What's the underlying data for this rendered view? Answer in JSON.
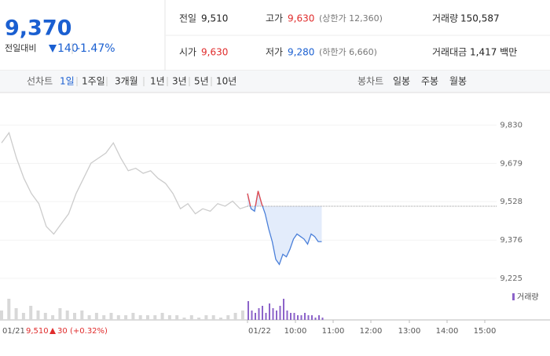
{
  "quote": {
    "price": "9,370",
    "change_label": "전일대비",
    "change": "140",
    "change_pct": "-1.47%"
  },
  "stats": [
    [
      {
        "label": "전일",
        "value": "9,510"
      },
      {
        "label": "고가",
        "value": "9,630",
        "extra": "(상한가 12,360)"
      },
      {
        "label": "거래량",
        "value": "150,587"
      }
    ],
    [
      {
        "label": "시가",
        "value": "9,630"
      },
      {
        "label": "저가",
        "value": "9,280",
        "extra": "(하한가 6,660)"
      },
      {
        "label": "거래대금",
        "value": "1,417 백만"
      }
    ]
  ],
  "tabs": {
    "line_label": "선차트",
    "line": [
      "1일",
      "1주일",
      "3개월",
      "1년",
      "3년",
      "5년",
      "10년"
    ],
    "candle_label": "봉차트",
    "candle": [
      "일봉",
      "주봉",
      "월봉"
    ]
  },
  "chart_data": {
    "type": "line",
    "prev_close": 9510,
    "ylim": [
      9200,
      9860
    ],
    "yticks": [
      {
        "value": 9225,
        "label": "9,225"
      },
      {
        "value": 9376,
        "label": "9,376"
      },
      {
        "value": 9528,
        "label": "9,528"
      },
      {
        "value": 9679,
        "label": "9,679"
      },
      {
        "value": 9830,
        "label": "9,830"
      }
    ],
    "series": [
      {
        "name": "01/21",
        "color": "#cccccc",
        "values": [
          9760,
          9800,
          9700,
          9620,
          9560,
          9520,
          9430,
          9400,
          9440,
          9480,
          9560,
          9620,
          9680,
          9700,
          9720,
          9760,
          9700,
          9650,
          9660,
          9640,
          9650,
          9620,
          9600,
          9560,
          9500,
          9520,
          9480,
          9500,
          9490,
          9520,
          9510,
          9530,
          9500,
          9510
        ]
      },
      {
        "name": "01/22",
        "color": "#4a7fd9",
        "values": [
          9560,
          9500,
          9490,
          9570,
          9520,
          9480,
          9420,
          9370,
          9300,
          9280,
          9320,
          9310,
          9340,
          9380,
          9400,
          9390,
          9380,
          9360,
          9400,
          9390,
          9370,
          9370
        ]
      }
    ],
    "volume_label": "거래량",
    "volume": [
      [
        4,
        9,
        5,
        3,
        6,
        4,
        3,
        2,
        5,
        4,
        3,
        4,
        2,
        3,
        2,
        3,
        2,
        2,
        3,
        2,
        2,
        2,
        3,
        2,
        2,
        1,
        2,
        1,
        2,
        2,
        1,
        2,
        3,
        4
      ],
      [
        8,
        4,
        3,
        5,
        6,
        3,
        7,
        5,
        4,
        6,
        9,
        4,
        3,
        3,
        2,
        2,
        3,
        2,
        2,
        1,
        2,
        1
      ]
    ],
    "time_labels": [
      "10:00",
      "11:00",
      "12:00",
      "13:00",
      "14:00",
      "15:00"
    ],
    "footer": {
      "date": "01/21",
      "close": "9,510",
      "change": "30",
      "change_pct": "(+0.32%)",
      "today": "01/22"
    }
  }
}
